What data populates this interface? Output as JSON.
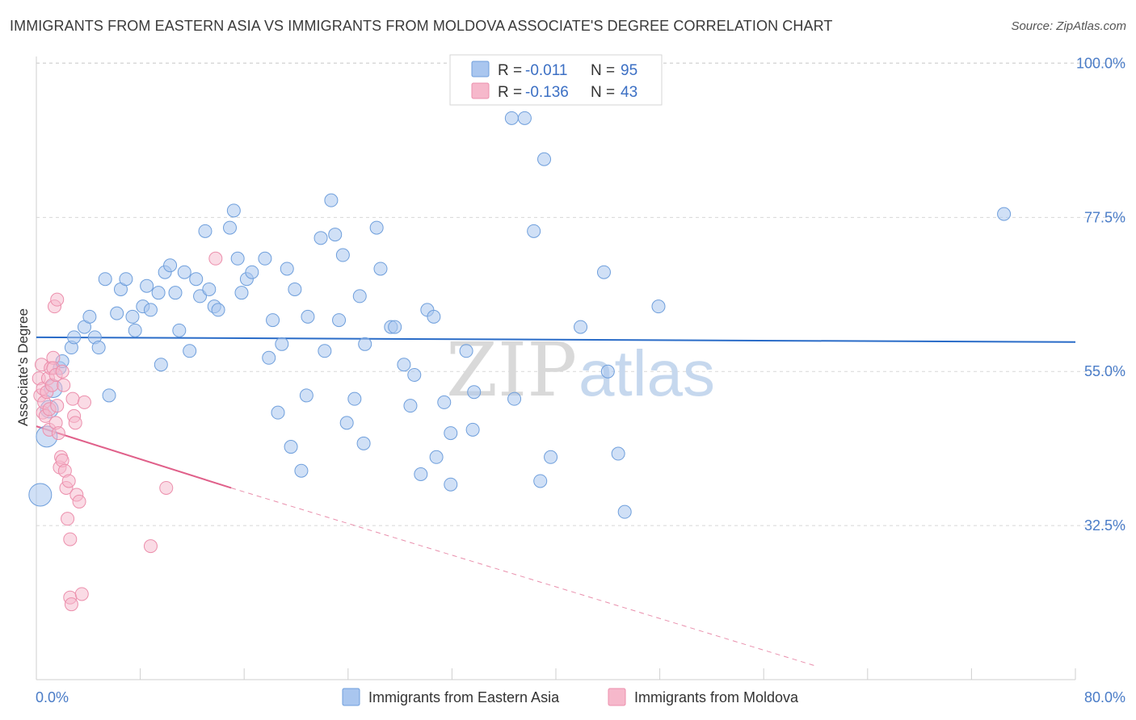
{
  "title": "IMMIGRANTS FROM EASTERN ASIA VS IMMIGRANTS FROM MOLDOVA ASSOCIATE'S DEGREE CORRELATION CHART",
  "source": "Source: ZipAtlas.com",
  "watermark": {
    "zip": "ZIP",
    "atlas": "atlas"
  },
  "legend": {
    "rows": [
      {
        "r_label": "R = ",
        "r_value": "-0.011",
        "n_label": "N = ",
        "n_value": "95"
      },
      {
        "r_label": "R = ",
        "r_value": "-0.136",
        "n_label": "N = ",
        "n_value": "43"
      }
    ]
  },
  "bottom_legend": [
    {
      "label": "Immigrants from Eastern Asia"
    },
    {
      "label": "Immigrants from Moldova"
    }
  ],
  "colors": {
    "series_a_fill": "#a9c6ef",
    "series_a_stroke": "#6f9fdc",
    "series_a_line": "#2a6cc8",
    "series_b_fill": "#f6b8cb",
    "series_b_stroke": "#ec8fac",
    "series_b_line": "#e0608a",
    "grid": "#d8d8d8",
    "tick_label": "#4a7cc7"
  },
  "chart_data": {
    "type": "scatter",
    "xlabel": "",
    "ylabel": "Associate's Degree",
    "xlim": [
      0,
      80
    ],
    "ylim": [
      10,
      101
    ],
    "x_tick_labels": [
      {
        "value": 0,
        "label": "0.0%"
      },
      {
        "value": 80,
        "label": "80.0%"
      }
    ],
    "y_tick_labels": [
      {
        "value": 100,
        "label": "100.0%"
      },
      {
        "value": 77.5,
        "label": "77.5%"
      },
      {
        "value": 55,
        "label": "55.0%"
      },
      {
        "value": 32.5,
        "label": "32.5%"
      }
    ],
    "grid": true,
    "legend_position": "top-center",
    "series": [
      {
        "name": "Immigrants from Eastern Asia",
        "r": -0.011,
        "n": 95,
        "trend": {
          "x0": 0,
          "y0": 60.0,
          "x1": 80,
          "y1": 59.3
        },
        "points": [
          [
            0.3,
            37.0
          ],
          [
            0.8,
            45.5
          ],
          [
            1.0,
            49.5
          ],
          [
            1.3,
            52.5
          ],
          [
            1.8,
            55.5
          ],
          [
            2.0,
            56.5
          ],
          [
            2.7,
            58.5
          ],
          [
            2.9,
            60.0
          ],
          [
            3.7,
            61.5
          ],
          [
            4.1,
            63.0
          ],
          [
            4.5,
            60.0
          ],
          [
            4.8,
            58.5
          ],
          [
            5.3,
            68.5
          ],
          [
            5.6,
            51.5
          ],
          [
            6.2,
            63.5
          ],
          [
            6.5,
            67.0
          ],
          [
            6.9,
            68.5
          ],
          [
            7.4,
            63.0
          ],
          [
            7.6,
            61.0
          ],
          [
            8.2,
            64.5
          ],
          [
            8.5,
            67.5
          ],
          [
            8.8,
            64.0
          ],
          [
            9.4,
            66.5
          ],
          [
            9.6,
            56.0
          ],
          [
            9.9,
            69.5
          ],
          [
            10.3,
            70.5
          ],
          [
            10.7,
            66.5
          ],
          [
            11.0,
            61.0
          ],
          [
            11.4,
            69.5
          ],
          [
            11.8,
            58.0
          ],
          [
            12.3,
            68.5
          ],
          [
            12.6,
            66.0
          ],
          [
            13.0,
            75.5
          ],
          [
            13.3,
            67.0
          ],
          [
            13.7,
            64.5
          ],
          [
            14.0,
            64.0
          ],
          [
            14.9,
            76.0
          ],
          [
            15.2,
            78.5
          ],
          [
            15.5,
            71.5
          ],
          [
            15.8,
            66.5
          ],
          [
            16.2,
            68.5
          ],
          [
            16.6,
            69.5
          ],
          [
            17.6,
            71.5
          ],
          [
            17.9,
            57.0
          ],
          [
            18.2,
            62.5
          ],
          [
            18.6,
            49.0
          ],
          [
            18.9,
            59.0
          ],
          [
            19.3,
            70.0
          ],
          [
            19.6,
            44.0
          ],
          [
            19.9,
            67.0
          ],
          [
            20.4,
            40.5
          ],
          [
            20.8,
            51.5
          ],
          [
            20.9,
            63.0
          ],
          [
            21.9,
            74.5
          ],
          [
            22.2,
            58.0
          ],
          [
            22.7,
            80.0
          ],
          [
            23.0,
            75.0
          ],
          [
            23.3,
            62.5
          ],
          [
            23.6,
            72.0
          ],
          [
            23.9,
            47.5
          ],
          [
            24.5,
            51.0
          ],
          [
            24.9,
            66.0
          ],
          [
            25.2,
            44.5
          ],
          [
            25.3,
            59.0
          ],
          [
            26.2,
            76.0
          ],
          [
            26.5,
            70.0
          ],
          [
            27.3,
            61.5
          ],
          [
            27.6,
            61.5
          ],
          [
            28.3,
            56.0
          ],
          [
            28.8,
            50.0
          ],
          [
            29.1,
            54.5
          ],
          [
            29.6,
            40.0
          ],
          [
            30.1,
            64.0
          ],
          [
            30.6,
            63.0
          ],
          [
            31.4,
            50.5
          ],
          [
            31.9,
            38.5
          ],
          [
            31.9,
            46.0
          ],
          [
            33.1,
            58.0
          ],
          [
            33.6,
            46.5
          ],
          [
            33.7,
            52.0
          ],
          [
            36.6,
            92.0
          ],
          [
            36.8,
            51.0
          ],
          [
            37.6,
            92.0
          ],
          [
            38.3,
            75.5
          ],
          [
            38.8,
            39.0
          ],
          [
            39.1,
            86.0
          ],
          [
            39.6,
            42.5
          ],
          [
            41.9,
            61.5
          ],
          [
            43.7,
            69.5
          ],
          [
            44.8,
            43.0
          ],
          [
            45.3,
            34.5
          ],
          [
            47.9,
            64.5
          ],
          [
            74.5,
            78.0
          ],
          [
            44.0,
            55.0
          ],
          [
            30.8,
            42.5
          ]
        ]
      },
      {
        "name": "Immigrants from Moldova",
        "r": -0.136,
        "n": 43,
        "trend": {
          "x0": 0,
          "y0": 47.0,
          "x1": 15.0,
          "y1": 38.0
        },
        "trend_dashed": {
          "x0": 15.0,
          "y0": 38.0,
          "x1": 60.0,
          "y1": 12.0
        },
        "points": [
          [
            0.2,
            54.0
          ],
          [
            0.3,
            51.5
          ],
          [
            0.4,
            56.0
          ],
          [
            0.5,
            52.5
          ],
          [
            0.5,
            49.0
          ],
          [
            0.6,
            50.5
          ],
          [
            0.7,
            48.5
          ],
          [
            0.8,
            52.0
          ],
          [
            0.9,
            54.0
          ],
          [
            1.0,
            49.5
          ],
          [
            1.0,
            46.5
          ],
          [
            1.1,
            55.5
          ],
          [
            1.2,
            53.0
          ],
          [
            1.3,
            57.0
          ],
          [
            1.3,
            55.5
          ],
          [
            1.4,
            64.5
          ],
          [
            1.5,
            54.5
          ],
          [
            1.5,
            47.5
          ],
          [
            1.6,
            50.0
          ],
          [
            1.6,
            65.5
          ],
          [
            1.7,
            46.0
          ],
          [
            1.8,
            41.0
          ],
          [
            1.9,
            42.5
          ],
          [
            2.0,
            42.0
          ],
          [
            2.0,
            55.0
          ],
          [
            2.1,
            53.0
          ],
          [
            2.2,
            40.5
          ],
          [
            2.3,
            38.0
          ],
          [
            2.4,
            33.5
          ],
          [
            2.5,
            39.0
          ],
          [
            2.6,
            30.5
          ],
          [
            2.6,
            22.0
          ],
          [
            2.7,
            21.0
          ],
          [
            2.8,
            51.0
          ],
          [
            2.9,
            48.5
          ],
          [
            3.0,
            47.5
          ],
          [
            3.1,
            37.0
          ],
          [
            3.3,
            36.0
          ],
          [
            3.5,
            22.5
          ],
          [
            3.7,
            50.5
          ],
          [
            8.8,
            29.5
          ],
          [
            10.0,
            38.0
          ],
          [
            13.8,
            71.5
          ]
        ]
      }
    ]
  }
}
